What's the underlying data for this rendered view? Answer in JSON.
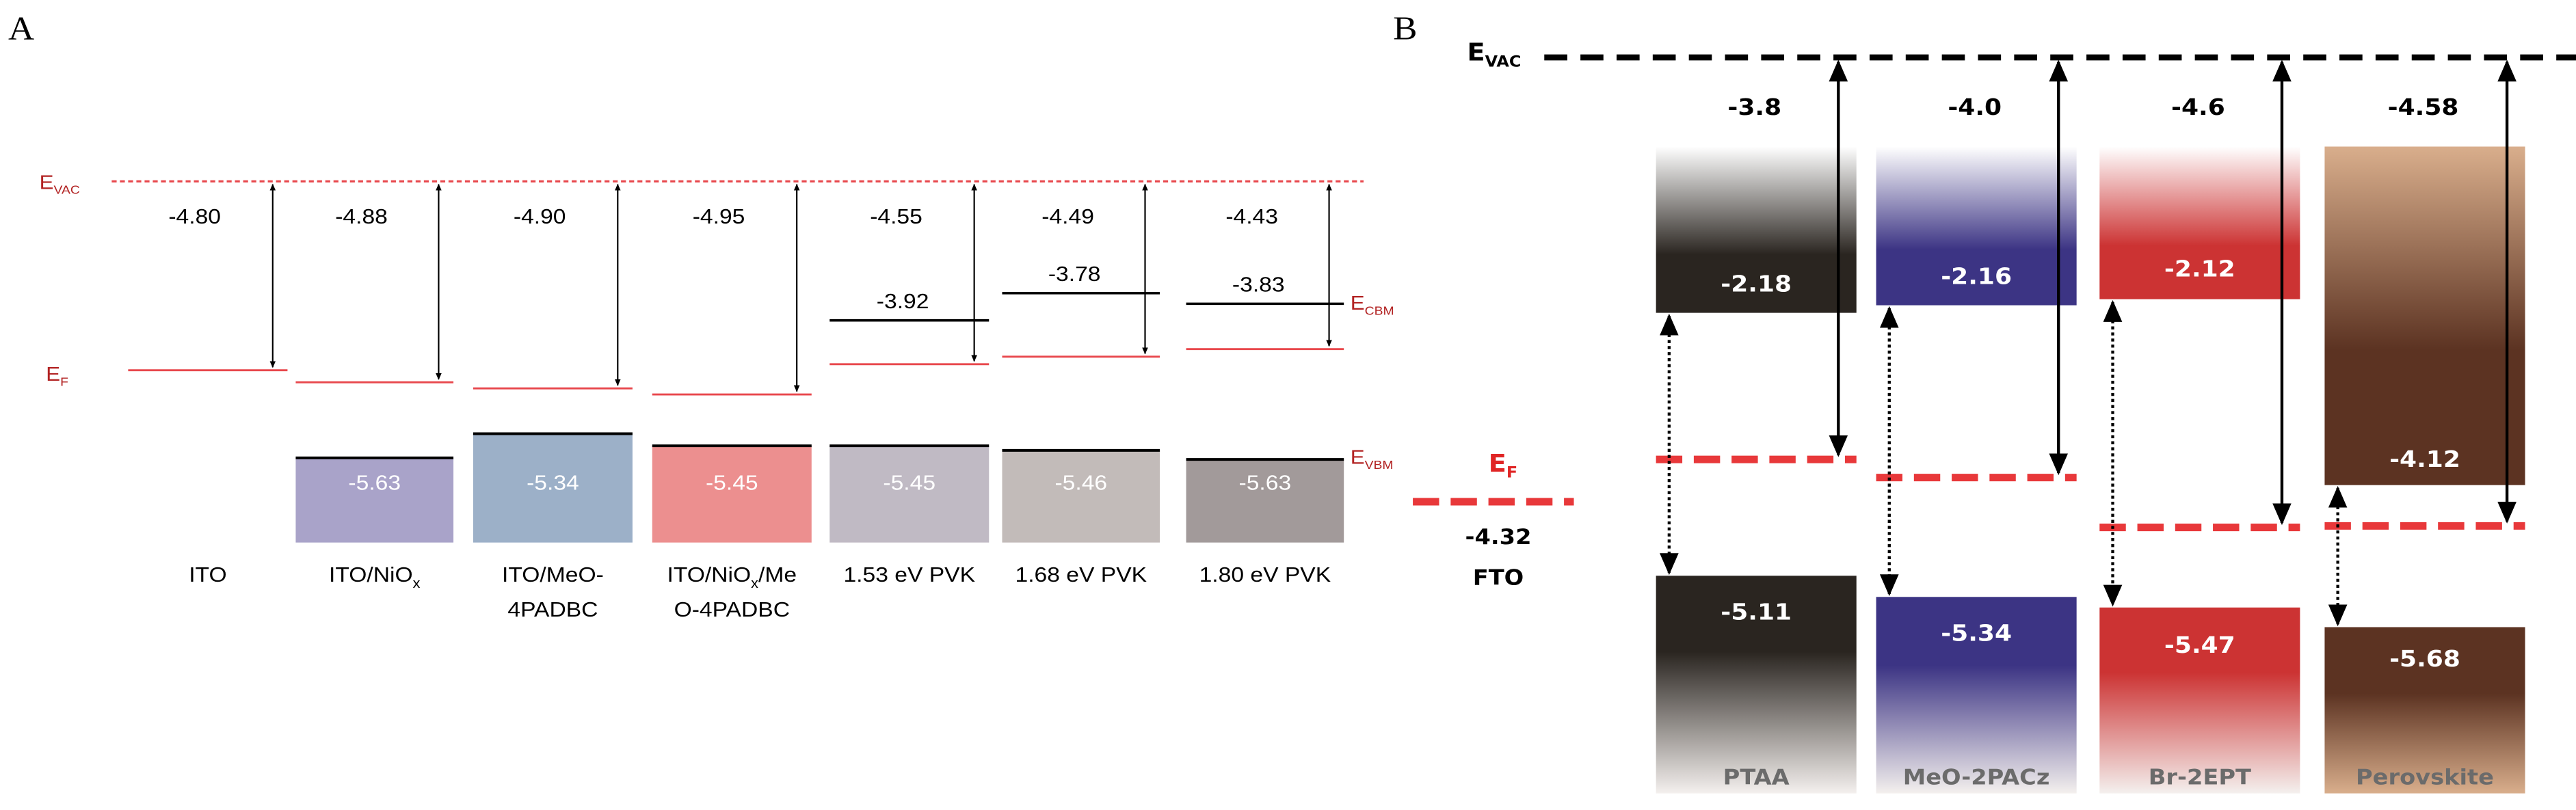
{
  "panel_a": {
    "label": "A",
    "evac_label": "E",
    "evac_sub": "VAC",
    "ef_label": "E",
    "ef_sub": "F",
    "ecbm_label": "E",
    "ecbm_sub": "CBM",
    "evbm_label": "E",
    "evbm_sub": "VBM",
    "columns": [
      {
        "name": "ITO",
        "name2": "",
        "wf": "-4.80",
        "cbm": null,
        "vbm": null,
        "color": null
      },
      {
        "name": "ITO/NiO",
        "name_sub": "x",
        "name2": "",
        "wf": "-4.88",
        "cbm": null,
        "vbm": "-5.63",
        "color": "#a9a3c9"
      },
      {
        "name": "ITO/MeO-",
        "name2": "4PADBC",
        "wf": "-4.90",
        "cbm": null,
        "vbm": "-5.34",
        "color": "#9cb0c8"
      },
      {
        "name": "ITO/NiO",
        "name_sub": "x",
        "name_tail": "/Me",
        "name2": "O-4PADBC",
        "wf": "-4.95",
        "cbm": null,
        "vbm": "-5.45",
        "color": "#ec8f8f"
      },
      {
        "name": "1.53 eV PVK",
        "name2": "",
        "wf": "-4.55",
        "cbm": "-3.92",
        "vbm": "-5.45",
        "color": "#c0bac4"
      },
      {
        "name": "1.68 eV PVK",
        "name2": "",
        "wf": "-4.49",
        "cbm": "-3.78",
        "vbm": "-5.46",
        "color": "#c2bbb9"
      },
      {
        "name": "1.80 eV PVK",
        "name2": "",
        "wf": "-4.43",
        "cbm": "-3.83",
        "vbm": "-5.63",
        "color": "#a29a9a"
      }
    ]
  },
  "panel_b": {
    "label": "B",
    "evac_label": "E",
    "evac_sub": "VAC",
    "ef_label": "E",
    "ef_sub": "F",
    "fto": {
      "name": "FTO",
      "ef": "-4.32"
    },
    "columns": [
      {
        "name": "PTAA",
        "wf": "-3.8",
        "lumo": "-2.18",
        "homo": "-5.11",
        "color": "#2a2520"
      },
      {
        "name": "MeO-2PACz",
        "wf": "-4.0",
        "lumo": "-2.16",
        "homo": "-5.34",
        "color": "#3c3484"
      },
      {
        "name": "Br-2EPT",
        "wf": "-4.6",
        "lumo": "-2.12",
        "homo": "-5.47",
        "color": "#cc3333"
      },
      {
        "name": "Perovskite",
        "wf": "-4.58",
        "lumo": "-4.12",
        "homo": "-5.68",
        "color": "#5c3322"
      }
    ]
  }
}
